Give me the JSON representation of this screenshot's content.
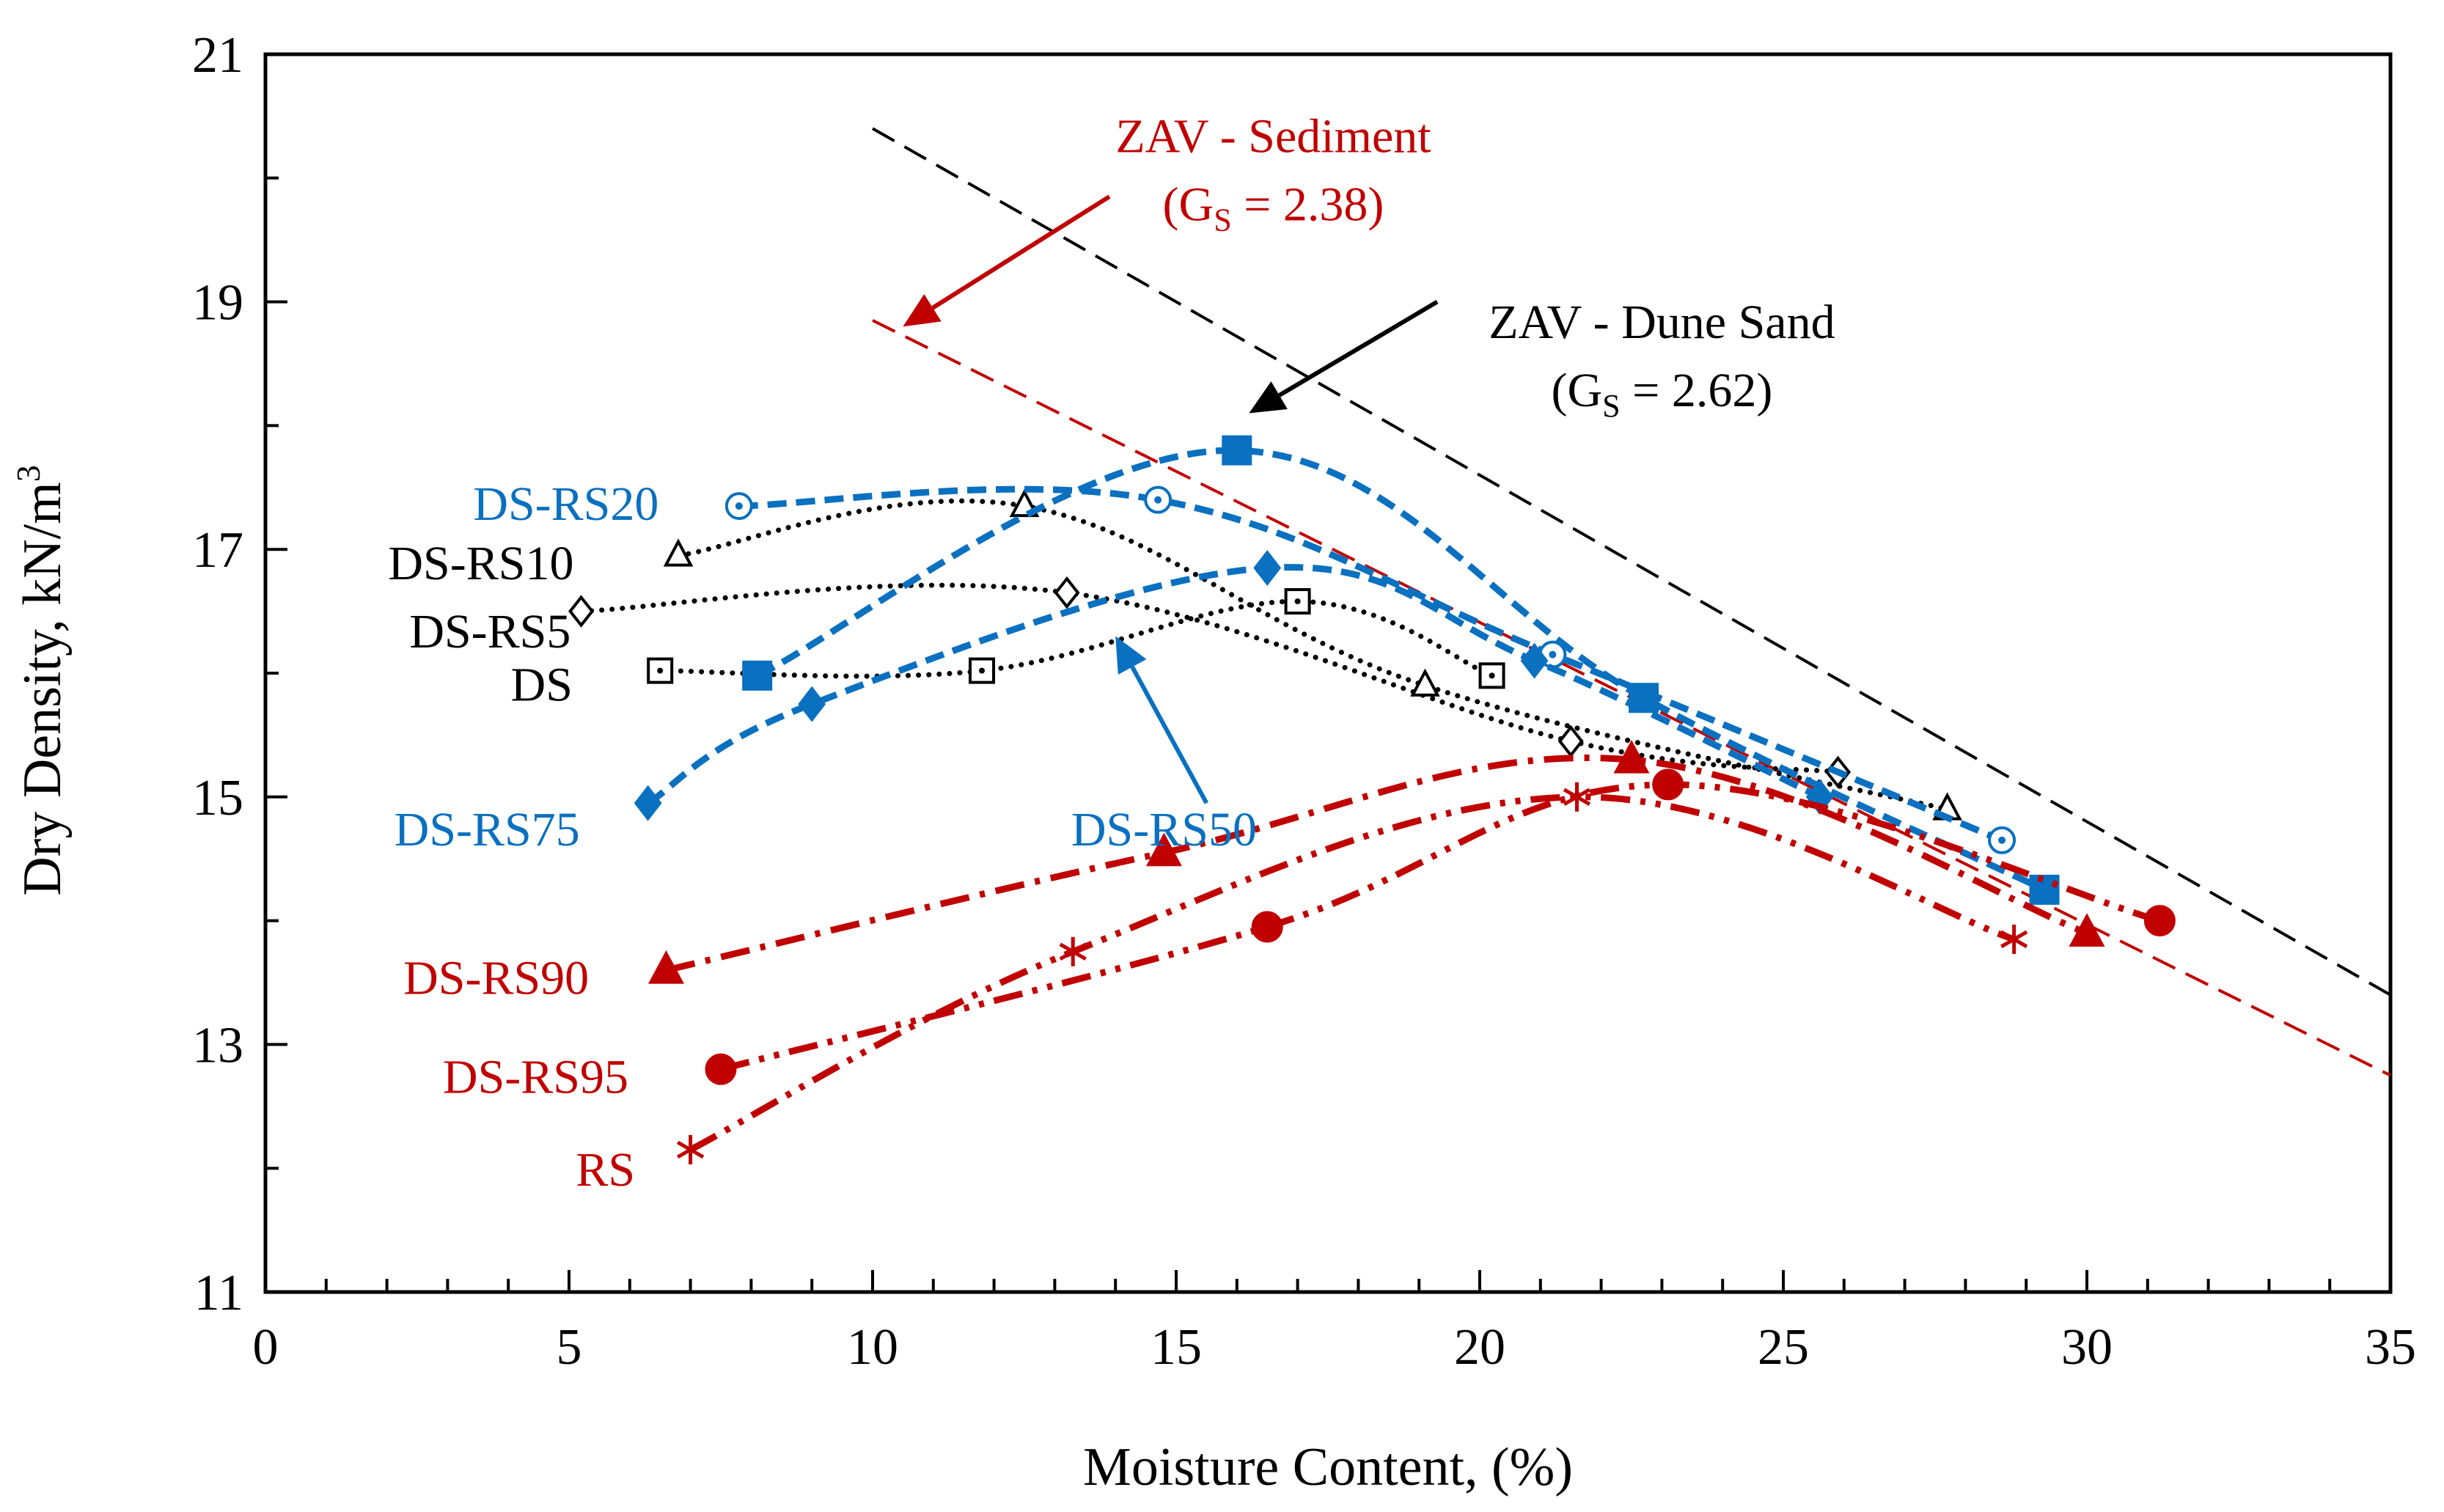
{
  "chart_data": {
    "type": "scatter",
    "title": "",
    "xlabel": "Moisture Content, (%)",
    "ylabel_main": "Dry Density, kN/m",
    "ylabel_sup": "3",
    "xlim": [
      0,
      35
    ],
    "ylim": [
      11,
      21
    ],
    "x_major_ticks": [
      0,
      5,
      10,
      15,
      20,
      25,
      30,
      35
    ],
    "x_minor_step": 1,
    "y_major_ticks": [
      11,
      13,
      15,
      17,
      19,
      21
    ],
    "y_minor_step": 1,
    "grid": false,
    "legend": "none",
    "colors": {
      "black": "#000000",
      "blue": "#0a70c0",
      "red": "#c00000"
    },
    "series": [
      {
        "name": "DS",
        "color": "#000000",
        "line": "dotted",
        "marker": "square-dot",
        "x": [
          6.5,
          11.8,
          17.0,
          20.2
        ],
        "y": [
          16.02,
          16.02,
          16.58,
          15.98
        ],
        "label": {
          "text": "DS",
          "x": 4.55,
          "y": 15.92,
          "anchor": "middle"
        }
      },
      {
        "name": "DS-RS5",
        "color": "#000000",
        "line": "dotted",
        "marker": "diamond",
        "x": [
          5.2,
          13.2,
          21.5,
          25.9
        ],
        "y": [
          16.5,
          16.65,
          15.45,
          15.2
        ],
        "label": {
          "text": "DS-RS5",
          "x": 3.7,
          "y": 16.35,
          "anchor": "middle"
        }
      },
      {
        "name": "DS-RS10",
        "color": "#000000",
        "line": "dotted",
        "marker": "triangle-open",
        "x": [
          6.8,
          12.5,
          19.1,
          27.7
        ],
        "y": [
          16.95,
          17.35,
          15.9,
          14.9
        ],
        "label": {
          "text": "DS-RS10",
          "x": 3.55,
          "y": 16.9,
          "anchor": "middle"
        }
      },
      {
        "name": "DS-RS20",
        "color": "#0a70c0",
        "line": "dashed",
        "marker": "circle-dot",
        "x": [
          7.8,
          14.7,
          21.2,
          28.6
        ],
        "y": [
          17.35,
          17.4,
          16.15,
          14.65
        ],
        "label": {
          "text": "DS-RS20",
          "x": 4.95,
          "y": 17.38,
          "anchor": "middle"
        }
      },
      {
        "name": "DS-RS50",
        "color": "#0a70c0",
        "line": "dashed",
        "marker": "square-filled",
        "x": [
          8.1,
          16.0,
          22.7,
          29.3
        ],
        "y": [
          15.98,
          17.8,
          15.8,
          14.25
        ],
        "label": {
          "text": "DS-RS50",
          "x": 14.8,
          "y": 14.75,
          "anchor": "middle"
        }
      },
      {
        "name": "DS-RS75",
        "color": "#0a70c0",
        "line": "dashed",
        "marker": "diamond-filled",
        "x": [
          6.3,
          9.0,
          16.5,
          20.9,
          25.6
        ],
        "y": [
          14.95,
          15.75,
          16.85,
          16.1,
          15.0
        ],
        "label": {
          "text": "DS-RS75",
          "x": 3.65,
          "y": 14.75,
          "anchor": "middle"
        }
      },
      {
        "name": "DS-RS90",
        "color": "#c00000",
        "line": "dashdot",
        "marker": "triangle-filled",
        "x": [
          6.6,
          14.8,
          22.5,
          30.0
        ],
        "y": [
          13.6,
          14.55,
          15.3,
          13.9
        ],
        "label": {
          "text": "DS-RS90",
          "x": 3.8,
          "y": 13.55,
          "anchor": "middle"
        }
      },
      {
        "name": "DS-RS95",
        "color": "#c00000",
        "line": "dashdotdot",
        "marker": "circle-filled",
        "x": [
          7.5,
          16.5,
          23.1,
          31.2
        ],
        "y": [
          12.8,
          13.95,
          15.1,
          14.0
        ],
        "label": {
          "text": "DS-RS95",
          "x": 4.45,
          "y": 12.75,
          "anchor": "middle"
        }
      },
      {
        "name": "RS",
        "color": "#c00000",
        "line": "dashdotdot",
        "marker": "asterisk",
        "x": [
          7.0,
          13.3,
          21.6,
          28.8
        ],
        "y": [
          12.15,
          13.75,
          15.0,
          13.85
        ],
        "label": {
          "text": "RS",
          "x": 5.6,
          "y": 12.0,
          "anchor": "middle"
        }
      }
    ],
    "zav_lines": [
      {
        "name": "ZAV - Dune Sand",
        "color": "#000000",
        "gs": 2.62,
        "x": [
          10.0,
          35.0
        ],
        "y": [
          20.4,
          13.4
        ]
      },
      {
        "name": "ZAV - Sediment",
        "color": "#c00000",
        "gs": 2.38,
        "x": [
          10.0,
          35.0
        ],
        "y": [
          18.85,
          12.75
        ]
      }
    ],
    "annotations": [
      {
        "color": "#c00000",
        "line1": "ZAV - Sediment",
        "line2_pre": "(G",
        "line2_sub": "S",
        "line2_post": " = 2.38)",
        "x1": 16.6,
        "y1": 20.35,
        "x2": 16.6,
        "y2": 19.8,
        "arrow_from": [
          13.9,
          19.85
        ],
        "arrow_to": [
          10.5,
          18.8
        ]
      },
      {
        "color": "#000000",
        "line1": "ZAV - Dune Sand",
        "line2_pre": "(G",
        "line2_sub": "S",
        "line2_post": " = 2.62)",
        "x1": 23.0,
        "y1": 18.85,
        "x2": 23.0,
        "y2": 18.3,
        "arrow_from": [
          19.3,
          19.0
        ],
        "arrow_to": [
          16.2,
          18.1
        ]
      },
      {
        "color": "#0a70c0",
        "arrow_from": [
          15.5,
          14.95
        ],
        "arrow_to": [
          14.0,
          16.3
        ]
      }
    ]
  }
}
